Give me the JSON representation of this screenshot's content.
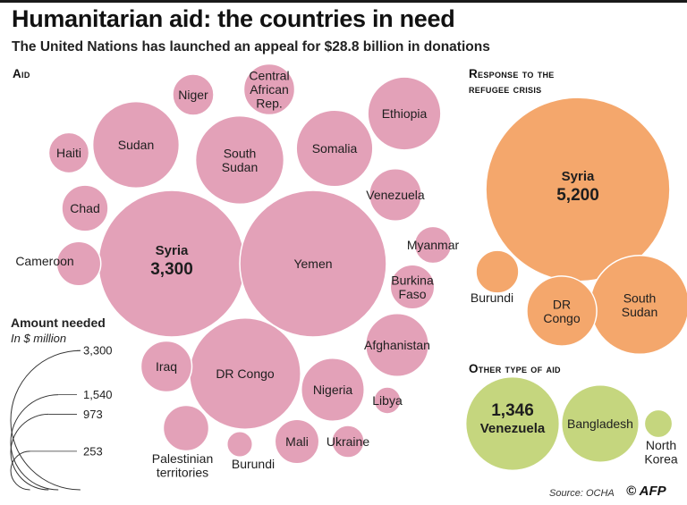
{
  "title": "Humanitarian aid: the countries in need",
  "subtitle": "The United Nations has launched an appeal for $28.8 billion in donations",
  "sections": {
    "aid": "Aid",
    "refugee": [
      "Response to the",
      "refugee crisis"
    ],
    "other": "Other type of aid"
  },
  "legend": {
    "title": "Amount needed",
    "subtitle": "In $ million",
    "values": [
      3300,
      1540,
      973,
      253
    ],
    "labels": [
      "3,300",
      "1,540",
      "973",
      "253"
    ]
  },
  "source": "Source: OCHA",
  "copyright": "© AFP",
  "colors": {
    "aid": "#e3a1b8",
    "refugee": "#f4a76c",
    "other": "#c5d67e"
  },
  "chart_data": {
    "type": "bubble",
    "unit": "$ million",
    "groups": [
      {
        "id": "aid",
        "bubbles": [
          {
            "name": "Syria",
            "label": [
              "Syria"
            ],
            "value": 3300,
            "value_label": "3,300",
            "highlight": true
          },
          {
            "name": "Yemen",
            "label": [
              "Yemen"
            ],
            "value": 3300
          },
          {
            "name": "DR Congo",
            "label": [
              "DR Congo"
            ],
            "value": 1900
          },
          {
            "name": "South Sudan",
            "label": [
              "South",
              "Sudan"
            ],
            "value": 1200
          },
          {
            "name": "Sudan",
            "label": [
              "Sudan"
            ],
            "value": 1150
          },
          {
            "name": "Somalia",
            "label": [
              "Somalia"
            ],
            "value": 900
          },
          {
            "name": "Ethiopia",
            "label": [
              "Ethiopia"
            ],
            "value": 820
          },
          {
            "name": "Nigeria",
            "label": [
              "Nigeria"
            ],
            "value": 610
          },
          {
            "name": "Afghanistan",
            "label": [
              "Afghanistan"
            ],
            "value": 610
          },
          {
            "name": "Venezuela",
            "label": [
              "Venezuela"
            ],
            "value": 420
          },
          {
            "name": "Iraq",
            "label": [
              "Iraq"
            ],
            "value": 400
          },
          {
            "name": "Chad",
            "label": [
              "Chad"
            ],
            "value": 330
          },
          {
            "name": "Palestinian territories",
            "label": [
              "Palestinian",
              "territories"
            ],
            "value": 320
          },
          {
            "name": "Haiti",
            "label": [
              "Haiti"
            ],
            "value": 250
          },
          {
            "name": "Mali",
            "label": [
              "Mali"
            ],
            "value": 300
          },
          {
            "name": "Niger",
            "label": [
              "Niger"
            ],
            "value": 260
          },
          {
            "name": "Cameroon",
            "label": [
              "Cameroon"
            ],
            "value": 300
          },
          {
            "name": "Central African Rep.",
            "label": [
              "Central",
              "African",
              "Rep."
            ],
            "value": 400
          },
          {
            "name": "Burkina Faso",
            "label": [
              "Burkina",
              "Faso"
            ],
            "value": 300
          },
          {
            "name": "Ukraine",
            "label": [
              "Ukraine"
            ],
            "value": 160
          },
          {
            "name": "Myanmar",
            "label": [
              "Myanmar"
            ],
            "value": 210
          },
          {
            "name": "Libya",
            "label": [
              "Libya"
            ],
            "value": 110
          },
          {
            "name": "Burundi",
            "label": [
              "Burundi"
            ],
            "value": 100
          }
        ]
      },
      {
        "id": "refugee",
        "bubbles": [
          {
            "name": "Syria",
            "label": [
              "Syria"
            ],
            "value": 5200,
            "value_label": "5,200",
            "highlight": true
          },
          {
            "name": "South Sudan",
            "label": [
              "South",
              "Sudan"
            ],
            "value": 1500
          },
          {
            "name": "DR Congo",
            "label": [
              "DR",
              "Congo"
            ],
            "value": 750
          },
          {
            "name": "Burundi",
            "label": [
              "Burundi"
            ],
            "value": 280
          }
        ]
      },
      {
        "id": "other",
        "bubbles": [
          {
            "name": "Venezuela",
            "label": [
              "Venezuela"
            ],
            "value": 1346,
            "value_label": "1,346",
            "highlight": true
          },
          {
            "name": "Bangladesh",
            "label": [
              "Bangladesh"
            ],
            "value": 920
          },
          {
            "name": "North Korea",
            "label": [
              "North",
              "Korea"
            ],
            "value": 120
          }
        ]
      }
    ]
  }
}
